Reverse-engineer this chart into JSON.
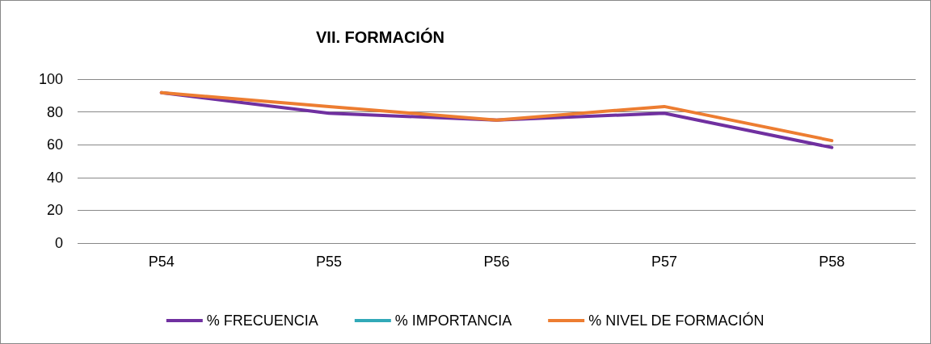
{
  "chart_data": {
    "type": "line",
    "title": "VII. FORMACIÓN",
    "categories": [
      "P54",
      "P55",
      "P56",
      "P57",
      "P58"
    ],
    "series": [
      {
        "name": "% FRECUENCIA",
        "color": "#7030a0",
        "values": [
          91.7,
          79.2,
          75,
          79.2,
          58.3
        ]
      },
      {
        "name": "% IMPORTANCIA",
        "color": "#31a9b8",
        "values": [
          null,
          null,
          null,
          null,
          null
        ]
      },
      {
        "name": "% NIVEL DE FORMACIÓN",
        "color": "#ed7d31",
        "values": [
          91.7,
          83.3,
          75,
          83.3,
          62.5
        ]
      }
    ],
    "ylim": [
      0,
      100
    ],
    "yticks": [
      0,
      20,
      40,
      60,
      80,
      100
    ],
    "grid": "y",
    "legend": "bottom",
    "marker": "none",
    "line_style": "solid"
  }
}
